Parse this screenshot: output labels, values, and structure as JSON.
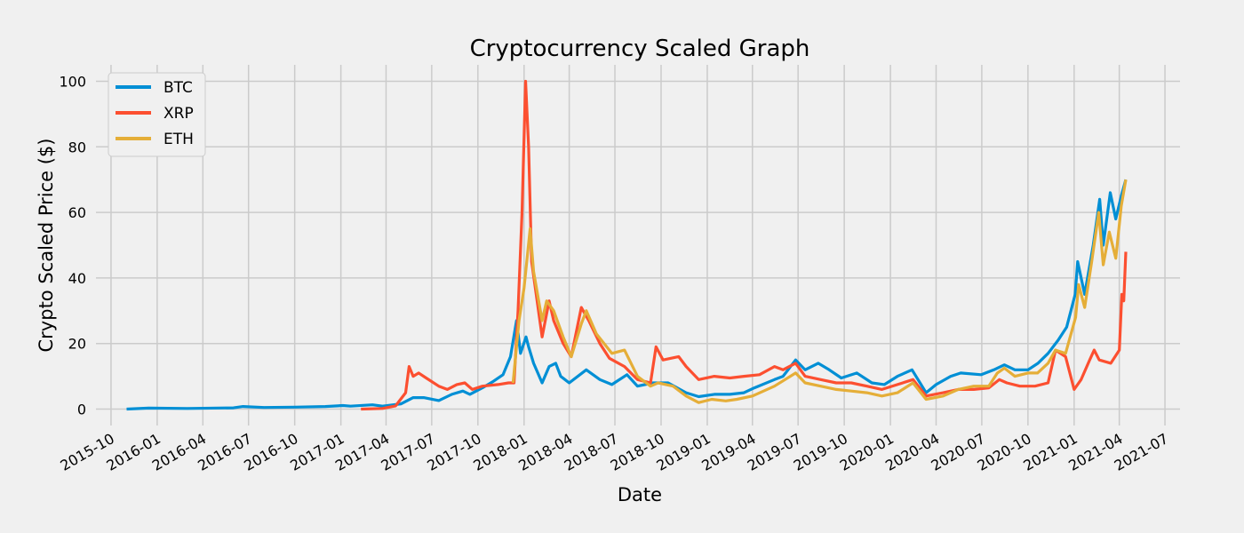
{
  "chart_data": {
    "type": "line",
    "title": "Cryptocurrency Scaled Graph",
    "xlabel": "Date",
    "ylabel": "Crypto Scaled Price ($)",
    "xlim": [
      "2015-09-01",
      "2021-07-31"
    ],
    "ylim": [
      -5,
      105
    ],
    "x_ticks": [
      "2015-10",
      "2016-01",
      "2016-04",
      "2016-07",
      "2016-10",
      "2017-01",
      "2017-04",
      "2017-07",
      "2017-10",
      "2018-01",
      "2018-04",
      "2018-07",
      "2018-10",
      "2019-01",
      "2019-04",
      "2019-07",
      "2019-10",
      "2020-01",
      "2020-04",
      "2020-07",
      "2020-10",
      "2021-01",
      "2021-04",
      "2021-07"
    ],
    "y_ticks": [
      0,
      20,
      40,
      60,
      80,
      100
    ],
    "grid": true,
    "legend_position": "top-left",
    "series": [
      {
        "name": "BTC",
        "color": "#008fd5",
        "points": [
          [
            "2015-11-01",
            0
          ],
          [
            "2015-12-15",
            0.3
          ],
          [
            "2016-03-01",
            0.2
          ],
          [
            "2016-06-01",
            0.4
          ],
          [
            "2016-06-20",
            0.8
          ],
          [
            "2016-08-01",
            0.5
          ],
          [
            "2016-10-01",
            0.6
          ],
          [
            "2016-12-01",
            0.8
          ],
          [
            "2017-01-05",
            1.1
          ],
          [
            "2017-01-20",
            0.9
          ],
          [
            "2017-03-05",
            1.3
          ],
          [
            "2017-03-25",
            0.9
          ],
          [
            "2017-05-01",
            1.6
          ],
          [
            "2017-05-25",
            3.5
          ],
          [
            "2017-06-15",
            3.5
          ],
          [
            "2017-07-15",
            2.6
          ],
          [
            "2017-08-10",
            4.5
          ],
          [
            "2017-09-01",
            5.5
          ],
          [
            "2017-09-15",
            4.5
          ],
          [
            "2017-10-10",
            6.5
          ],
          [
            "2017-11-01",
            8.5
          ],
          [
            "2017-11-20",
            10.5
          ],
          [
            "2017-12-05",
            16
          ],
          [
            "2017-12-17",
            27
          ],
          [
            "2017-12-25",
            17
          ],
          [
            "2018-01-05",
            22
          ],
          [
            "2018-01-10",
            19
          ],
          [
            "2018-01-20",
            14
          ],
          [
            "2018-02-06",
            8
          ],
          [
            "2018-02-20",
            13
          ],
          [
            "2018-03-05",
            14
          ],
          [
            "2018-03-15",
            10
          ],
          [
            "2018-04-01",
            8
          ],
          [
            "2018-05-05",
            12
          ],
          [
            "2018-06-01",
            9
          ],
          [
            "2018-06-25",
            7.5
          ],
          [
            "2018-07-25",
            10.5
          ],
          [
            "2018-08-15",
            7
          ],
          [
            "2018-09-15",
            8
          ],
          [
            "2018-10-15",
            8
          ],
          [
            "2018-11-20",
            5
          ],
          [
            "2018-12-15",
            3.8
          ],
          [
            "2019-01-15",
            4.5
          ],
          [
            "2019-02-15",
            4.5
          ],
          [
            "2019-03-15",
            5
          ],
          [
            "2019-04-05",
            6.5
          ],
          [
            "2019-05-15",
            9
          ],
          [
            "2019-06-01",
            10
          ],
          [
            "2019-06-26",
            15
          ],
          [
            "2019-07-15",
            12
          ],
          [
            "2019-08-10",
            14
          ],
          [
            "2019-09-01",
            12
          ],
          [
            "2019-09-25",
            9.5
          ],
          [
            "2019-10-26",
            11
          ],
          [
            "2019-11-25",
            8
          ],
          [
            "2019-12-20",
            7.5
          ],
          [
            "2020-01-15",
            10
          ],
          [
            "2020-02-13",
            12
          ],
          [
            "2020-03-12",
            5
          ],
          [
            "2020-04-01",
            7.5
          ],
          [
            "2020-04-30",
            10
          ],
          [
            "2020-05-20",
            11
          ],
          [
            "2020-06-30",
            10.5
          ],
          [
            "2020-07-25",
            12
          ],
          [
            "2020-08-15",
            13.5
          ],
          [
            "2020-09-05",
            12
          ],
          [
            "2020-10-01",
            12
          ],
          [
            "2020-10-21",
            14
          ],
          [
            "2020-11-10",
            17
          ],
          [
            "2020-11-30",
            21
          ],
          [
            "2020-12-17",
            25
          ],
          [
            "2021-01-03",
            35
          ],
          [
            "2021-01-08",
            45
          ],
          [
            "2021-01-22",
            35
          ],
          [
            "2021-02-08",
            50
          ],
          [
            "2021-02-21",
            64
          ],
          [
            "2021-02-28",
            50
          ],
          [
            "2021-03-14",
            66
          ],
          [
            "2021-03-25",
            58
          ],
          [
            "2021-04-05",
            65
          ],
          [
            "2021-04-14",
            70
          ]
        ]
      },
      {
        "name": "XRP",
        "color": "#fc4f30",
        "points": [
          [
            "2017-02-10",
            0
          ],
          [
            "2017-03-25",
            0.2
          ],
          [
            "2017-04-20",
            1
          ],
          [
            "2017-05-10",
            5
          ],
          [
            "2017-05-17",
            13
          ],
          [
            "2017-05-25",
            10
          ],
          [
            "2017-06-05",
            11
          ],
          [
            "2017-06-20",
            9.5
          ],
          [
            "2017-07-15",
            7
          ],
          [
            "2017-08-01",
            6
          ],
          [
            "2017-08-20",
            7.5
          ],
          [
            "2017-09-05",
            8
          ],
          [
            "2017-09-20",
            6
          ],
          [
            "2017-10-10",
            7
          ],
          [
            "2017-11-10",
            7.5
          ],
          [
            "2017-12-01",
            8
          ],
          [
            "2017-12-12",
            8
          ],
          [
            "2017-12-20",
            30
          ],
          [
            "2017-12-28",
            60
          ],
          [
            "2018-01-04",
            100
          ],
          [
            "2018-01-10",
            80
          ],
          [
            "2018-01-16",
            45
          ],
          [
            "2018-02-06",
            22
          ],
          [
            "2018-02-20",
            33
          ],
          [
            "2018-03-01",
            27
          ],
          [
            "2018-03-20",
            20
          ],
          [
            "2018-04-05",
            16
          ],
          [
            "2018-04-25",
            31
          ],
          [
            "2018-05-10",
            27
          ],
          [
            "2018-06-01",
            20
          ],
          [
            "2018-06-20",
            15.5
          ],
          [
            "2018-07-20",
            13
          ],
          [
            "2018-08-15",
            9
          ],
          [
            "2018-09-10",
            8
          ],
          [
            "2018-09-21",
            19
          ],
          [
            "2018-10-05",
            15
          ],
          [
            "2018-11-05",
            16
          ],
          [
            "2018-11-20",
            13
          ],
          [
            "2018-12-15",
            9
          ],
          [
            "2019-01-15",
            10
          ],
          [
            "2019-02-15",
            9.5
          ],
          [
            "2019-03-15",
            10
          ],
          [
            "2019-04-15",
            10.5
          ],
          [
            "2019-05-15",
            13
          ],
          [
            "2019-06-01",
            12
          ],
          [
            "2019-06-26",
            14
          ],
          [
            "2019-07-15",
            10
          ],
          [
            "2019-08-15",
            9
          ],
          [
            "2019-09-15",
            8
          ],
          [
            "2019-10-15",
            8
          ],
          [
            "2019-11-15",
            7
          ],
          [
            "2019-12-15",
            6
          ],
          [
            "2020-01-15",
            7.5
          ],
          [
            "2020-02-15",
            9
          ],
          [
            "2020-03-12",
            4
          ],
          [
            "2020-04-15",
            5
          ],
          [
            "2020-05-15",
            6
          ],
          [
            "2020-06-15",
            6
          ],
          [
            "2020-07-15",
            6.5
          ],
          [
            "2020-08-05",
            9
          ],
          [
            "2020-08-20",
            8
          ],
          [
            "2020-09-15",
            7
          ],
          [
            "2020-10-15",
            7
          ],
          [
            "2020-11-10",
            8
          ],
          [
            "2020-11-25",
            18
          ],
          [
            "2020-12-15",
            16
          ],
          [
            "2021-01-01",
            6
          ],
          [
            "2021-01-15",
            9
          ],
          [
            "2021-02-01",
            15
          ],
          [
            "2021-02-10",
            18
          ],
          [
            "2021-02-20",
            15
          ],
          [
            "2021-03-15",
            14
          ],
          [
            "2021-04-01",
            18
          ],
          [
            "2021-04-06",
            35
          ],
          [
            "2021-04-10",
            33
          ],
          [
            "2021-04-14",
            48
          ]
        ]
      },
      {
        "name": "ETH",
        "color": "#e5ae38",
        "points": [
          [
            "2017-12-10",
            8
          ],
          [
            "2017-12-22",
            27
          ],
          [
            "2018-01-01",
            37
          ],
          [
            "2018-01-13",
            55
          ],
          [
            "2018-01-20",
            42
          ],
          [
            "2018-02-06",
            27
          ],
          [
            "2018-02-15",
            33
          ],
          [
            "2018-03-01",
            30
          ],
          [
            "2018-03-20",
            22
          ],
          [
            "2018-04-05",
            16
          ],
          [
            "2018-04-25",
            26
          ],
          [
            "2018-05-05",
            30
          ],
          [
            "2018-05-25",
            23
          ],
          [
            "2018-06-25",
            17
          ],
          [
            "2018-07-20",
            18
          ],
          [
            "2018-08-15",
            10
          ],
          [
            "2018-09-10",
            7
          ],
          [
            "2018-09-25",
            8
          ],
          [
            "2018-10-25",
            7
          ],
          [
            "2018-11-20",
            4
          ],
          [
            "2018-12-15",
            2
          ],
          [
            "2019-01-10",
            3
          ],
          [
            "2019-02-07",
            2.5
          ],
          [
            "2019-03-01",
            3
          ],
          [
            "2019-04-01",
            4
          ],
          [
            "2019-05-15",
            7
          ],
          [
            "2019-06-26",
            11
          ],
          [
            "2019-07-15",
            8
          ],
          [
            "2019-08-15",
            7
          ],
          [
            "2019-09-15",
            6
          ],
          [
            "2019-10-15",
            5.5
          ],
          [
            "2019-11-15",
            5
          ],
          [
            "2019-12-15",
            4
          ],
          [
            "2020-01-15",
            5
          ],
          [
            "2020-02-15",
            8
          ],
          [
            "2020-03-12",
            3
          ],
          [
            "2020-04-15",
            4
          ],
          [
            "2020-05-15",
            6
          ],
          [
            "2020-06-15",
            7
          ],
          [
            "2020-07-15",
            7
          ],
          [
            "2020-08-01",
            11
          ],
          [
            "2020-08-15",
            12.5
          ],
          [
            "2020-09-05",
            10
          ],
          [
            "2020-10-01",
            11
          ],
          [
            "2020-10-20",
            11
          ],
          [
            "2020-11-10",
            14
          ],
          [
            "2020-11-25",
            18
          ],
          [
            "2020-12-15",
            17
          ],
          [
            "2021-01-04",
            28
          ],
          [
            "2021-01-10",
            38
          ],
          [
            "2021-01-22",
            31
          ],
          [
            "2021-02-05",
            45
          ],
          [
            "2021-02-19,",
            60
          ],
          [
            "2021-02-28",
            44
          ],
          [
            "2021-03-12",
            54
          ],
          [
            "2021-03-25",
            46
          ],
          [
            "2021-04-05",
            62
          ],
          [
            "2021-04-14",
            70
          ]
        ]
      }
    ]
  }
}
